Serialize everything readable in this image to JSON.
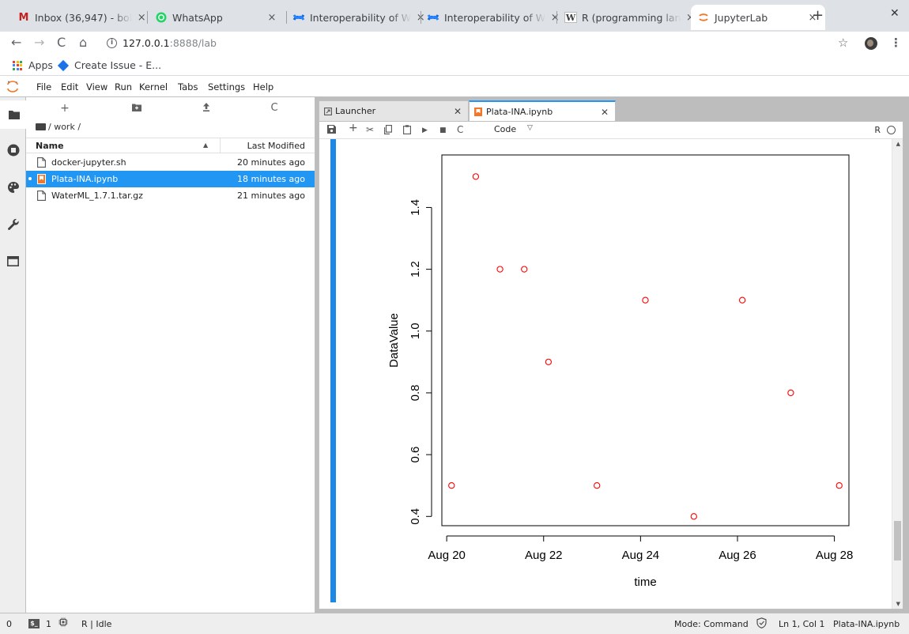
{
  "browser": {
    "tabs": [
      {
        "title": "Inbox (36,947) - bol",
        "icon": "gmail-icon",
        "color": "#c5221f"
      },
      {
        "title": "WhatsApp",
        "icon": "whatsapp-icon",
        "color": "#25d366"
      },
      {
        "title": "Interoperability of W",
        "icon": "confluence-icon",
        "color": "#1868db"
      },
      {
        "title": "Interoperability of W",
        "icon": "confluence-icon",
        "color": "#1868db"
      },
      {
        "title": "R (programming lan",
        "icon": "wikipedia-icon",
        "color": "#333333"
      },
      {
        "title": "JupyterLab",
        "icon": "jupyter-icon",
        "color": "#f37726"
      }
    ],
    "url_host": "127.0.0.1",
    "url_rest": ":8888/lab",
    "bookmarks": [
      "Apps",
      "Create Issue - E..."
    ]
  },
  "menu": [
    "File",
    "Edit",
    "View",
    "Run",
    "Kernel",
    "Tabs",
    "Settings",
    "Help"
  ],
  "filebrowser": {
    "path": "/ work /",
    "col_name": "Name",
    "col_modified": "Last Modified",
    "files": [
      {
        "name": "docker-jupyter.sh",
        "modified": "20 minutes ago",
        "selected": false
      },
      {
        "name": "Plata-INA.ipynb",
        "modified": "18 minutes ago",
        "selected": true
      },
      {
        "name": "WaterML_1.7.1.tar.gz",
        "modified": "21 minutes ago",
        "selected": false
      }
    ]
  },
  "doc_tabs": [
    "Launcher",
    "Plata-INA.ipynb"
  ],
  "notebook": {
    "cell_type": "Code",
    "kernel": "R"
  },
  "statusbar": {
    "left_count": "0",
    "terminals": "1",
    "kernel_status": "R | Idle",
    "mode": "Mode: Command",
    "position": "Ln 1, Col 1",
    "filename": "Plata-INA.ipynb"
  },
  "colors": {
    "accent": "#2196f3",
    "points": "#ff0000"
  },
  "chart_data": {
    "type": "scatter",
    "xlabel": "time",
    "ylabel": "DataValue",
    "x_tick_labels": [
      "Aug 20",
      "Aug 22",
      "Aug 24",
      "Aug 26",
      "Aug 28"
    ],
    "y_tick_labels": [
      "0.4",
      "0.6",
      "0.8",
      "1.0",
      "1.2",
      "1.4"
    ],
    "xlim": [
      "Aug 19.9",
      "Aug 28.3"
    ],
    "ylim": [
      0.37,
      1.57
    ],
    "points": [
      {
        "x": "Aug 20.1",
        "y": 0.5
      },
      {
        "x": "Aug 20.6",
        "y": 1.5
      },
      {
        "x": "Aug 21.1",
        "y": 1.2
      },
      {
        "x": "Aug 21.6",
        "y": 1.2
      },
      {
        "x": "Aug 22.1",
        "y": 0.9
      },
      {
        "x": "Aug 23.1",
        "y": 0.5
      },
      {
        "x": "Aug 24.1",
        "y": 1.1
      },
      {
        "x": "Aug 25.1",
        "y": 0.4
      },
      {
        "x": "Aug 26.1",
        "y": 1.1
      },
      {
        "x": "Aug 27.1",
        "y": 0.8
      },
      {
        "x": "Aug 28.1",
        "y": 0.5
      }
    ],
    "grid": false,
    "marker": "open-circle"
  }
}
